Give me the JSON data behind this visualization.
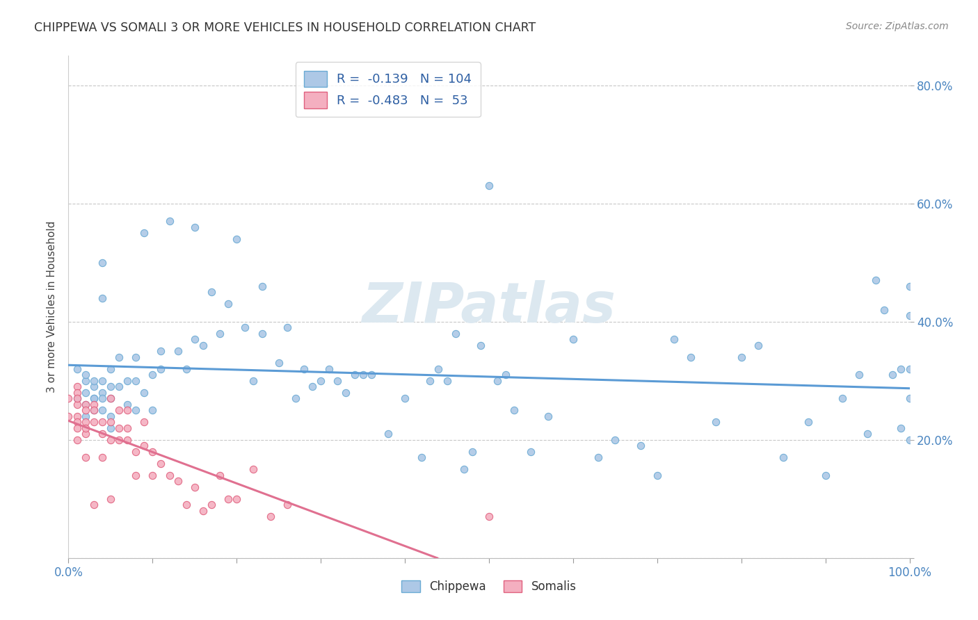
{
  "title": "CHIPPEWA VS SOMALI 3 OR MORE VEHICLES IN HOUSEHOLD CORRELATION CHART",
  "source": "Source: ZipAtlas.com",
  "ylabel": "3 or more Vehicles in Household",
  "xlim": [
    0.0,
    1.0
  ],
  "ylim": [
    0.0,
    0.85
  ],
  "chippewa_color": "#adc8e6",
  "chippewa_edge": "#6aaad4",
  "somali_color": "#f4afc0",
  "somali_edge": "#e0607e",
  "chippewa_line_color": "#5b9bd5",
  "somali_line_color": "#e07090",
  "legend_R_color": "#2e5fa3",
  "watermark": "ZIPatlas",
  "watermark_color": "#dce8f0",
  "chippewa_R": -0.139,
  "chippewa_N": 104,
  "somali_R": -0.483,
  "somali_N": 53,
  "chippewa_x": [
    0.01,
    0.01,
    0.02,
    0.02,
    0.02,
    0.02,
    0.02,
    0.03,
    0.03,
    0.03,
    0.03,
    0.03,
    0.04,
    0.04,
    0.04,
    0.04,
    0.04,
    0.04,
    0.05,
    0.05,
    0.05,
    0.05,
    0.05,
    0.06,
    0.06,
    0.07,
    0.07,
    0.08,
    0.08,
    0.08,
    0.09,
    0.09,
    0.1,
    0.1,
    0.11,
    0.11,
    0.12,
    0.13,
    0.14,
    0.15,
    0.15,
    0.16,
    0.17,
    0.18,
    0.19,
    0.2,
    0.21,
    0.22,
    0.23,
    0.23,
    0.25,
    0.26,
    0.27,
    0.28,
    0.29,
    0.3,
    0.31,
    0.32,
    0.33,
    0.34,
    0.35,
    0.36,
    0.38,
    0.4,
    0.42,
    0.43,
    0.44,
    0.45,
    0.46,
    0.47,
    0.48,
    0.49,
    0.5,
    0.51,
    0.52,
    0.53,
    0.55,
    0.57,
    0.6,
    0.63,
    0.65,
    0.68,
    0.7,
    0.72,
    0.74,
    0.77,
    0.8,
    0.82,
    0.85,
    0.88,
    0.9,
    0.92,
    0.94,
    0.95,
    0.96,
    0.97,
    0.98,
    0.99,
    0.99,
    1.0,
    1.0,
    1.0,
    1.0,
    1.0
  ],
  "chippewa_y": [
    0.27,
    0.32,
    0.3,
    0.26,
    0.24,
    0.28,
    0.31,
    0.27,
    0.25,
    0.29,
    0.27,
    0.3,
    0.5,
    0.44,
    0.28,
    0.25,
    0.3,
    0.27,
    0.32,
    0.29,
    0.27,
    0.24,
    0.22,
    0.29,
    0.34,
    0.3,
    0.26,
    0.34,
    0.3,
    0.25,
    0.55,
    0.28,
    0.31,
    0.25,
    0.35,
    0.32,
    0.57,
    0.35,
    0.32,
    0.56,
    0.37,
    0.36,
    0.45,
    0.38,
    0.43,
    0.54,
    0.39,
    0.3,
    0.46,
    0.38,
    0.33,
    0.39,
    0.27,
    0.32,
    0.29,
    0.3,
    0.32,
    0.3,
    0.28,
    0.31,
    0.31,
    0.31,
    0.21,
    0.27,
    0.17,
    0.3,
    0.32,
    0.3,
    0.38,
    0.15,
    0.18,
    0.36,
    0.63,
    0.3,
    0.31,
    0.25,
    0.18,
    0.24,
    0.37,
    0.17,
    0.2,
    0.19,
    0.14,
    0.37,
    0.34,
    0.23,
    0.34,
    0.36,
    0.17,
    0.23,
    0.14,
    0.27,
    0.31,
    0.21,
    0.47,
    0.42,
    0.31,
    0.22,
    0.32,
    0.32,
    0.41,
    0.46,
    0.27,
    0.2
  ],
  "somali_x": [
    0.0,
    0.0,
    0.01,
    0.01,
    0.01,
    0.01,
    0.01,
    0.01,
    0.01,
    0.01,
    0.02,
    0.02,
    0.02,
    0.02,
    0.02,
    0.02,
    0.03,
    0.03,
    0.03,
    0.03,
    0.04,
    0.04,
    0.04,
    0.05,
    0.05,
    0.05,
    0.05,
    0.06,
    0.06,
    0.06,
    0.07,
    0.07,
    0.07,
    0.08,
    0.08,
    0.09,
    0.09,
    0.1,
    0.1,
    0.11,
    0.12,
    0.13,
    0.14,
    0.15,
    0.16,
    0.17,
    0.18,
    0.19,
    0.2,
    0.22,
    0.24,
    0.26,
    0.5
  ],
  "somali_y": [
    0.27,
    0.24,
    0.29,
    0.26,
    0.24,
    0.28,
    0.23,
    0.2,
    0.22,
    0.27,
    0.26,
    0.23,
    0.21,
    0.17,
    0.25,
    0.22,
    0.26,
    0.23,
    0.09,
    0.25,
    0.23,
    0.21,
    0.17,
    0.27,
    0.23,
    0.1,
    0.2,
    0.25,
    0.22,
    0.2,
    0.25,
    0.22,
    0.2,
    0.18,
    0.14,
    0.23,
    0.19,
    0.18,
    0.14,
    0.16,
    0.14,
    0.13,
    0.09,
    0.12,
    0.08,
    0.09,
    0.14,
    0.1,
    0.1,
    0.15,
    0.07,
    0.09,
    0.07
  ]
}
